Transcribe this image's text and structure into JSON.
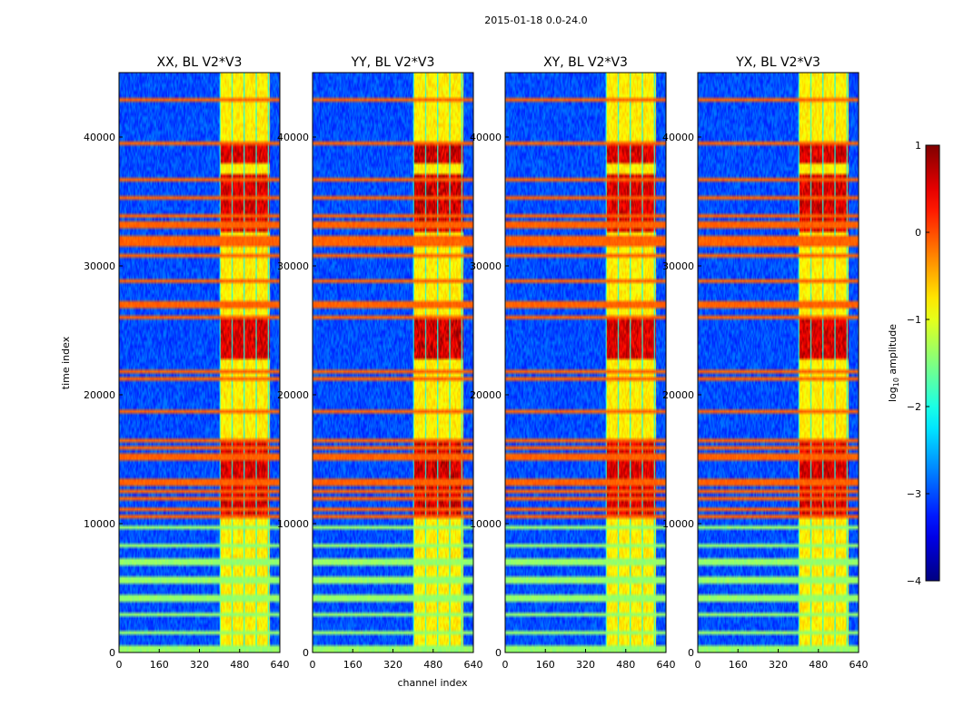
{
  "chart_data": {
    "type": "heatmap",
    "suptitle": "2015-01-18 0.0-24.0",
    "xlabel": "channel index",
    "ylabel": "time index",
    "xlim": [
      0,
      640
    ],
    "ylim": [
      0,
      45000
    ],
    "xticks": [
      0,
      160,
      320,
      480,
      640
    ],
    "yticks": [
      0,
      10000,
      20000,
      30000,
      40000
    ],
    "colorbar": {
      "label_main": "log",
      "label_sub": "10",
      "label_tail": " amplitude",
      "range": [
        -4,
        1
      ],
      "ticks": [
        "1",
        "0",
        "−1",
        "−2",
        "−3",
        "−4"
      ],
      "tick_values": [
        1,
        0,
        -1,
        -2,
        -3,
        -4
      ],
      "colormap": "jet"
    },
    "panels": [
      {
        "title": "XX, BL V2*V3",
        "band_strength": 0.85,
        "rfi_channel_range": [
          400,
          600
        ]
      },
      {
        "title": "YY, BL V2*V3",
        "band_strength": 1.0,
        "rfi_channel_range": [
          400,
          600
        ]
      },
      {
        "title": "XY, BL V2*V3",
        "band_strength": 0.85,
        "rfi_channel_range": [
          400,
          600
        ]
      },
      {
        "title": "YX, BL V2*V3",
        "band_strength": 0.9,
        "rfi_channel_range": [
          400,
          600
        ]
      }
    ],
    "features": {
      "background_log_amplitude": -3.0,
      "rfi_band_log_amplitude": -1.0,
      "peak_log_amplitude": 0.8,
      "strong_time_segments": [
        [
          10500,
          16700
        ],
        [
          22800,
          26000
        ],
        [
          32500,
          37000
        ],
        [
          38000,
          39500
        ]
      ],
      "flagged_time_rows": [
        43000,
        39500,
        36700,
        35200,
        34000,
        33200,
        32300,
        31800,
        30800,
        28800,
        27000,
        26000,
        21800,
        21200,
        18800,
        16500,
        16000,
        15200,
        13200,
        12600,
        12000,
        11000,
        10600
      ],
      "low_time_striped_range": [
        0,
        10500
      ]
    }
  }
}
